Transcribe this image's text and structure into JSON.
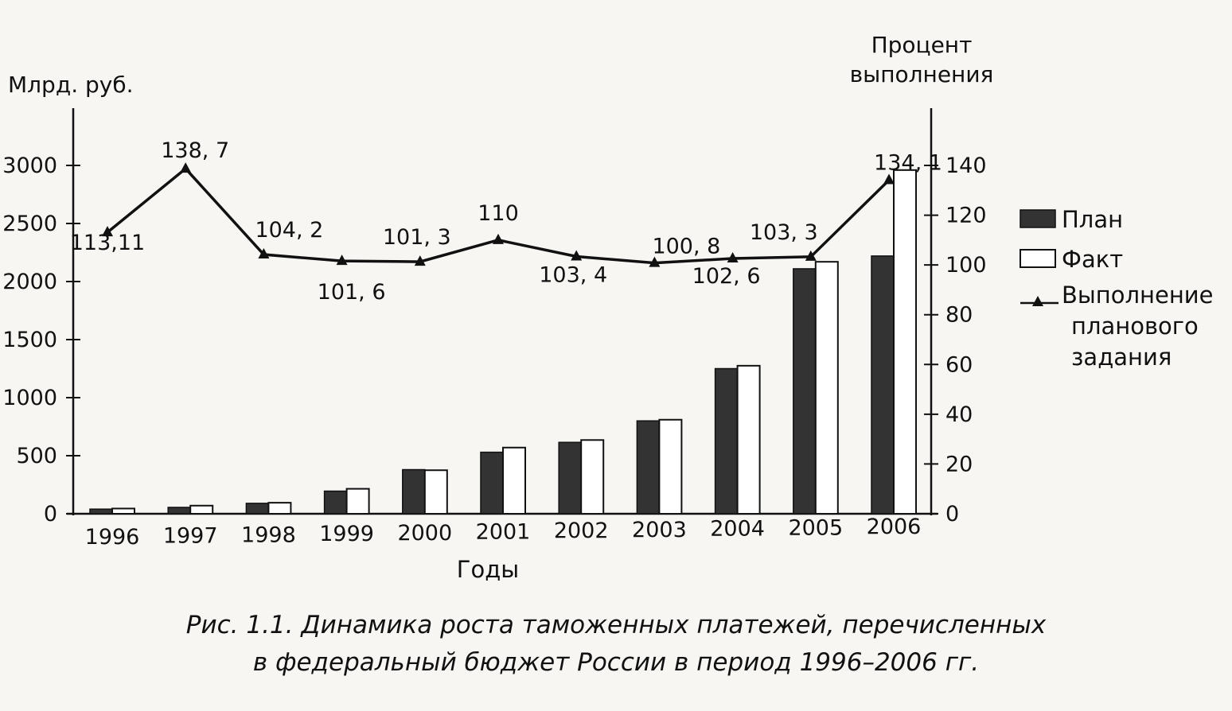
{
  "chart_data": {
    "type": "bar",
    "left_axis": {
      "label": "Млрд. руб.",
      "min": 0,
      "max": 3000,
      "ticks": [
        0,
        500,
        1000,
        1500,
        2000,
        2500,
        3000
      ],
      "tick_labels": [
        "0",
        "500",
        "1000",
        "1500",
        "2000",
        "2500",
        "3000"
      ]
    },
    "right_axis": {
      "label_lines": [
        "Процент",
        "выполнения"
      ],
      "min": 0,
      "max": 140,
      "ticks": [
        0,
        20,
        40,
        60,
        80,
        100,
        120,
        140
      ],
      "tick_labels": [
        "0",
        "20",
        "40",
        "60",
        "80",
        "100",
        "120",
        "140"
      ]
    },
    "xlabel": "Годы",
    "categories": [
      "1996",
      "1997",
      "1998",
      "1999",
      "2000",
      "2001",
      "2002",
      "2003",
      "2004",
      "2005",
      "2006"
    ],
    "series": [
      {
        "name": "План",
        "type": "bar",
        "color": "#333333",
        "values": [
          40,
          55,
          90,
          195,
          380,
          530,
          615,
          800,
          1250,
          2110,
          2220
        ]
      },
      {
        "name": "Факт",
        "type": "bar",
        "color": "#ffffff",
        "values": [
          45,
          70,
          95,
          215,
          375,
          570,
          635,
          810,
          1275,
          2170,
          2960
        ]
      },
      {
        "name_lines": [
          "Выполнение",
          "планового",
          "задания"
        ],
        "type": "line",
        "axis": "right",
        "color": "#111111",
        "values": [
          113.11,
          138.7,
          104.2,
          101.6,
          101.3,
          110,
          103.4,
          100.8,
          102.6,
          103.3,
          134.1
        ],
        "labels": [
          "113,11",
          "138, 7",
          "104, 2",
          "101, 6",
          "101, 3",
          "110",
          "103, 4",
          "100, 8",
          "102, 6",
          "103, 3",
          "134, 1"
        ]
      }
    ],
    "grid": false,
    "legend": "right"
  },
  "caption": {
    "line1": "Рис. 1.1. Динамика роста таможенных платежей, перечисленных",
    "line2": "в федеральный бюджет России в период 1996–2006 гг."
  }
}
